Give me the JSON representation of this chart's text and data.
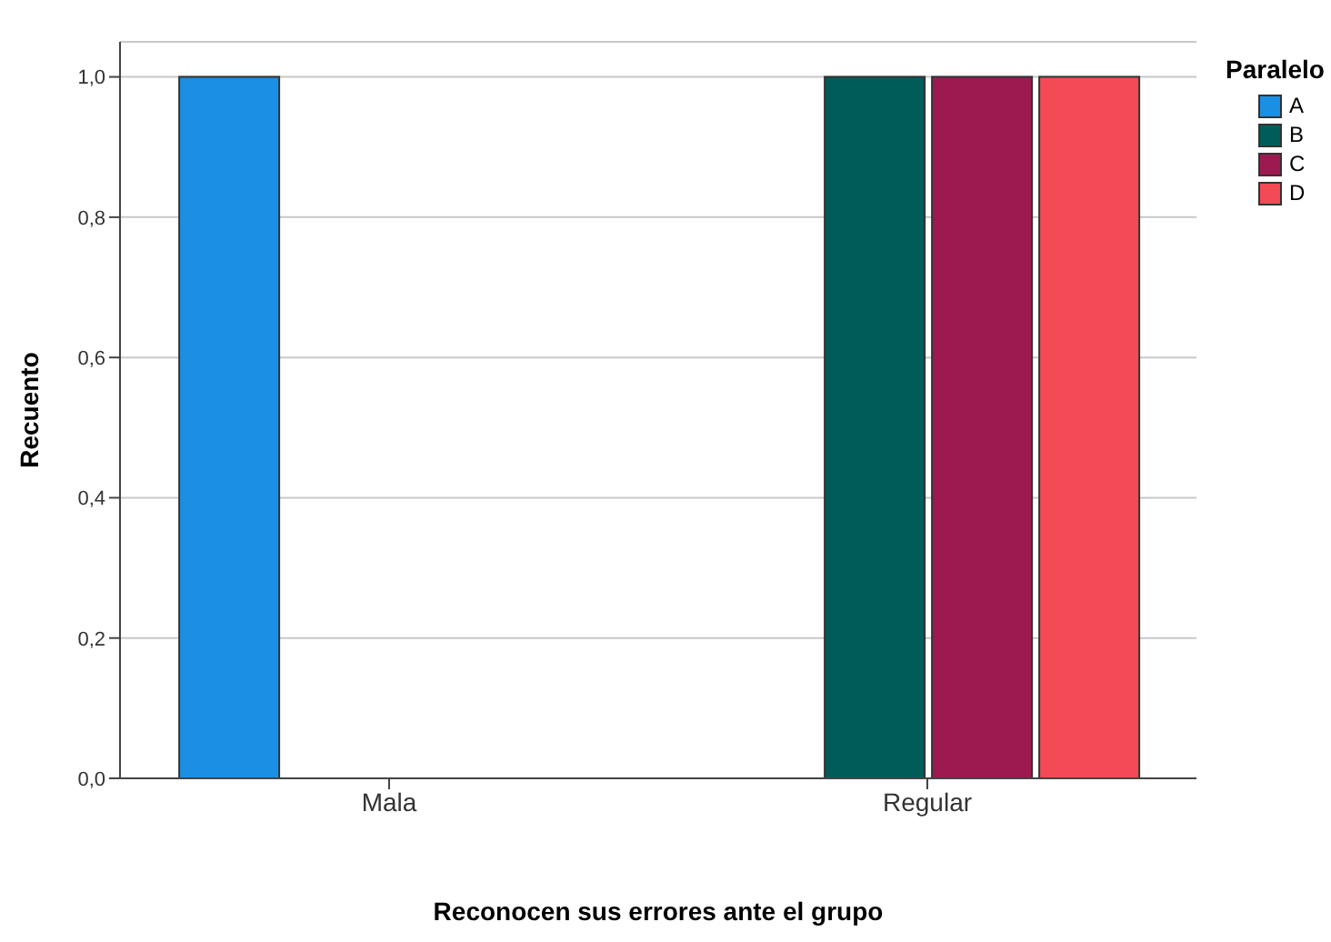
{
  "chart_data": {
    "type": "bar",
    "xlabel": "Reconocen sus errores ante el grupo",
    "ylabel": "Recuento",
    "legend_title": "Paralelo",
    "categories": [
      "Mala",
      "Regular"
    ],
    "series": [
      {
        "name": "A",
        "color": "#1a8fe3",
        "values": [
          1.0,
          null
        ]
      },
      {
        "name": "B",
        "color": "#005c59",
        "values": [
          null,
          1.0
        ]
      },
      {
        "name": "C",
        "color": "#9c1a50",
        "values": [
          null,
          1.0
        ]
      },
      {
        "name": "D",
        "color": "#f44a55",
        "values": [
          null,
          1.0
        ]
      }
    ],
    "ylim": [
      0,
      1.05
    ],
    "yticks": [
      {
        "value": 0,
        "label": "0,0"
      },
      {
        "value": 0.2,
        "label": "0,2"
      },
      {
        "value": 0.4,
        "label": "0,4"
      },
      {
        "value": 0.6,
        "label": "0,6"
      },
      {
        "value": 0.8,
        "label": "0,8"
      },
      {
        "value": 1.0,
        "label": "1,0"
      }
    ],
    "grid": "y",
    "legend": "top right"
  }
}
